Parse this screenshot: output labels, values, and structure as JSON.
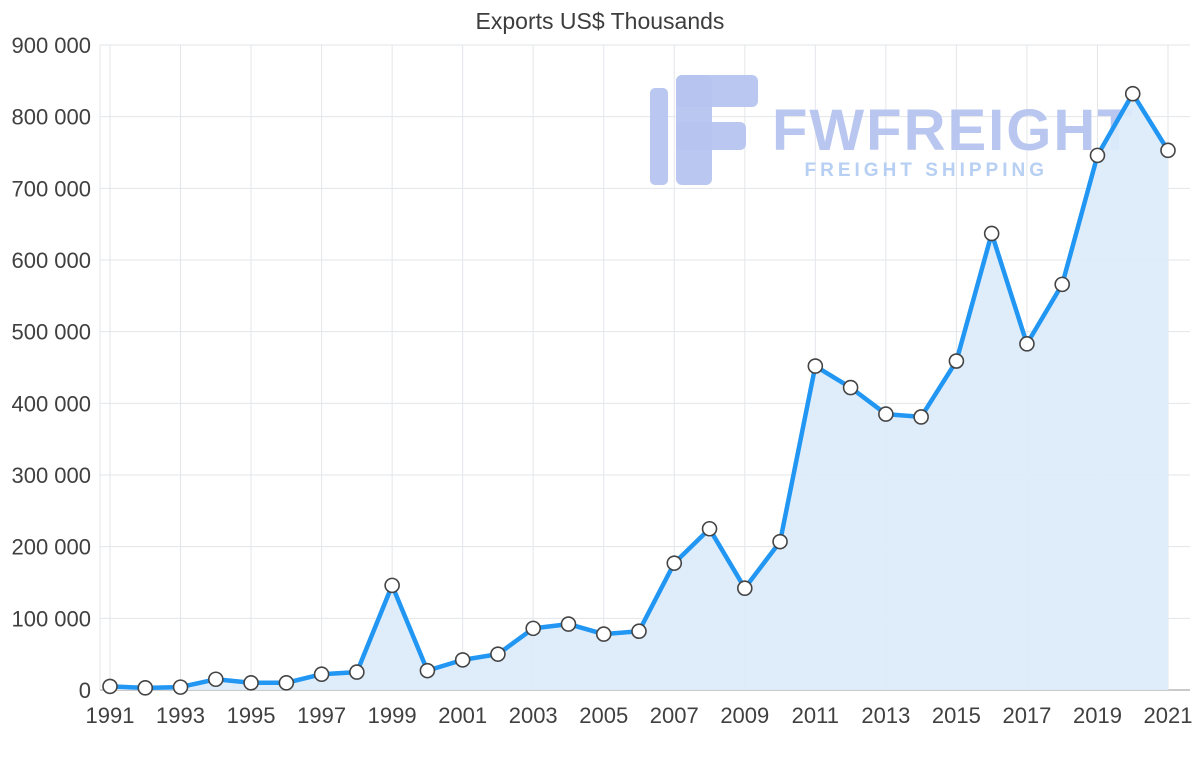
{
  "watermark": {
    "brand": "FWFREIGHT",
    "tagline": "FREIGHT SHIPPING"
  },
  "theme": {
    "line": "#2196f3",
    "area": "#dcecfb",
    "marker_fill": "#ffffff",
    "marker_stroke": "#444444",
    "grid": "#e3e6ea",
    "axis": "#b9b9b9",
    "text": "#404040",
    "watermark_color": "#b6c4ef",
    "tagline_color": "#b3cdf2"
  },
  "chart_data": {
    "type": "area",
    "title": "Exports US$ Thousands",
    "xlabel": "",
    "ylabel": "",
    "ylim": [
      0,
      900000
    ],
    "grid": true,
    "legend": "none",
    "x": [
      1991,
      1992,
      1993,
      1994,
      1995,
      1996,
      1997,
      1998,
      1999,
      2000,
      2001,
      2002,
      2003,
      2004,
      2005,
      2006,
      2007,
      2008,
      2009,
      2010,
      2011,
      2012,
      2013,
      2014,
      2015,
      2016,
      2017,
      2018,
      2019,
      2020,
      2021
    ],
    "values": [
      5000,
      3000,
      4000,
      15000,
      10000,
      10000,
      22000,
      25000,
      146000,
      27000,
      42000,
      50000,
      86000,
      92000,
      78000,
      82000,
      177000,
      225000,
      142000,
      207000,
      452000,
      422000,
      385000,
      381000,
      459000,
      637000,
      483000,
      566000,
      746000,
      832000,
      753000
    ],
    "y_ticks": [
      0,
      100000,
      200000,
      300000,
      400000,
      500000,
      600000,
      700000,
      800000,
      900000
    ],
    "y_tick_labels": [
      "0",
      "100 000",
      "200 000",
      "300 000",
      "400 000",
      "500 000",
      "600 000",
      "700 000",
      "800 000",
      "900 000"
    ],
    "x_tick_labels": [
      "1991",
      "1993",
      "1995",
      "1997",
      "1999",
      "2001",
      "2003",
      "2005",
      "2007",
      "2009",
      "2011",
      "2013",
      "2015",
      "2017",
      "2019",
      "2021"
    ]
  }
}
